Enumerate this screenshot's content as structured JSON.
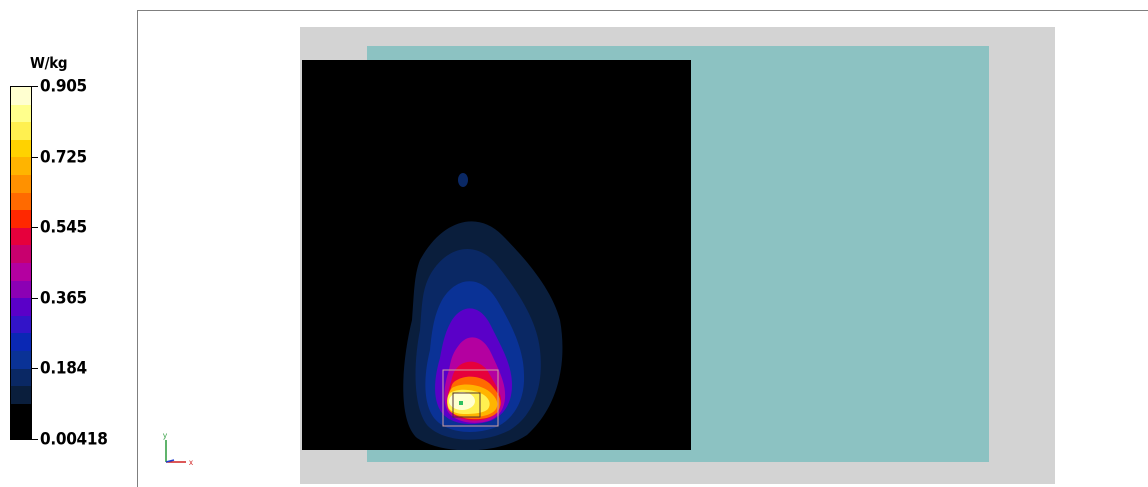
{
  "legend": {
    "unit": "W/kg",
    "ticks": [
      {
        "label": "0.905",
        "position": 0.0
      },
      {
        "label": "0.725",
        "position": 0.2
      },
      {
        "label": "0.545",
        "position": 0.4
      },
      {
        "label": "0.365",
        "position": 0.6
      },
      {
        "label": "0.184",
        "position": 0.8
      },
      {
        "label": "0.00418",
        "position": 1.0
      }
    ],
    "colors": [
      "#ffffd0",
      "#ffff8c",
      "#fff050",
      "#ffd200",
      "#ffb400",
      "#ff9100",
      "#ff6a00",
      "#ff2800",
      "#e6003c",
      "#c8006e",
      "#b400a0",
      "#8c00b4",
      "#5a00c8",
      "#3214c8",
      "#0a28b4",
      "#0a3296",
      "#0a2864",
      "#0a1e3c",
      "#000000",
      "#000000"
    ]
  },
  "view": {
    "colors": {
      "phantom": "#d3d3d3",
      "board": "#8cc2c2",
      "scan_area": "#000000",
      "zoom_box": "#d2a0a0"
    },
    "axes": {
      "x_label": "x",
      "y_label": "y"
    }
  }
}
